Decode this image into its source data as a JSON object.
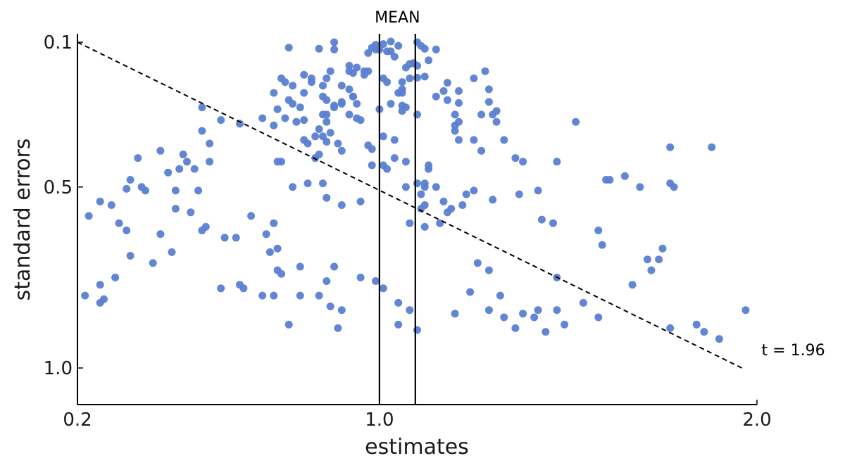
{
  "chart_data": {
    "type": "scatter",
    "title": "",
    "xlabel": "estimates",
    "ylabel": "standard errors",
    "xlim": [
      0.2,
      2.0
    ],
    "ylim": [
      0.1,
      1.0
    ],
    "y_inverted": true,
    "x_ticks": [
      0.2,
      1.0,
      2.0
    ],
    "x_tick_labels": [
      "0.2",
      "1.0",
      "2.0"
    ],
    "y_ticks": [
      0.1,
      0.5,
      1.0
    ],
    "y_tick_labels": [
      "0.1",
      "0.5",
      "1.0"
    ],
    "grid": false,
    "point_color": "#5b7fd1",
    "vertical_lines": [
      {
        "x": 1.0,
        "label": "MEAN"
      },
      {
        "x": 1.095
      }
    ],
    "reference_line": {
      "style": "dashed",
      "x": [
        0.2,
        1.96
      ],
      "y": [
        0.1,
        1.0
      ],
      "label": "t = 1.96"
    },
    "points": [
      [
        0.76,
        0.115
      ],
      [
        0.84,
        0.118
      ],
      [
        0.88,
        0.12
      ],
      [
        0.88,
        0.1
      ],
      [
        0.92,
        0.165
      ],
      [
        0.92,
        0.18
      ],
      [
        0.94,
        0.17
      ],
      [
        0.97,
        0.13
      ],
      [
        0.99,
        0.12
      ],
      [
        1.03,
        0.098
      ],
      [
        1.05,
        0.11
      ],
      [
        1.1,
        0.1
      ],
      [
        1.11,
        0.11
      ],
      [
        1.12,
        0.118
      ],
      [
        1.15,
        0.12
      ],
      [
        1.13,
        0.15
      ],
      [
        1.08,
        0.16
      ],
      [
        1.09,
        0.158
      ],
      [
        1.1,
        0.165
      ],
      [
        1.07,
        0.17
      ],
      [
        1.03,
        0.125
      ],
      [
        1.04,
        0.14
      ],
      [
        1.02,
        0.125
      ],
      [
        0.98,
        0.115
      ],
      [
        0.99,
        0.107
      ],
      [
        1.0,
        0.12
      ],
      [
        1.01,
        0.105
      ],
      [
        0.96,
        0.18
      ],
      [
        1.05,
        0.24
      ],
      [
        1.06,
        0.23
      ],
      [
        1.08,
        0.2
      ],
      [
        1.06,
        0.21
      ],
      [
        1.06,
        0.24
      ],
      [
        1.06,
        0.275
      ],
      [
        1.07,
        0.28
      ],
      [
        1.1,
        0.198
      ],
      [
        1.12,
        0.195
      ],
      [
        1.17,
        0.235
      ],
      [
        1.18,
        0.212
      ],
      [
        1.15,
        0.25
      ],
      [
        1.18,
        0.26
      ],
      [
        1.21,
        0.235
      ],
      [
        1.21,
        0.268
      ],
      [
        1.2,
        0.3
      ],
      [
        1.21,
        0.32
      ],
      [
        1.2,
        0.33
      ],
      [
        1.2,
        0.345
      ],
      [
        1.21,
        0.37
      ],
      [
        1.25,
        0.37
      ],
      [
        1.27,
        0.3
      ],
      [
        1.3,
        0.3
      ],
      [
        1.31,
        0.29
      ],
      [
        1.29,
        0.265
      ],
      [
        1.29,
        0.23
      ],
      [
        1.28,
        0.18
      ],
      [
        1.25,
        0.2
      ],
      [
        1.31,
        0.32
      ],
      [
        1.33,
        0.37
      ],
      [
        1.36,
        0.42
      ],
      [
        1.38,
        0.43
      ],
      [
        1.25,
        0.51
      ],
      [
        1.3,
        0.535
      ],
      [
        1.18,
        0.57
      ],
      [
        1.07,
        0.5
      ],
      [
        1.1,
        0.49
      ],
      [
        1.12,
        0.55
      ],
      [
        1.11,
        0.56
      ],
      [
        1.16,
        0.6
      ],
      [
        1.12,
        0.61
      ],
      [
        1.08,
        0.6
      ],
      [
        0.87,
        0.18
      ],
      [
        0.86,
        0.2
      ],
      [
        0.82,
        0.21
      ],
      [
        0.8,
        0.24
      ],
      [
        0.79,
        0.28
      ],
      [
        0.8,
        0.315
      ],
      [
        0.85,
        0.3
      ],
      [
        0.88,
        0.275
      ],
      [
        0.9,
        0.265
      ],
      [
        0.93,
        0.25
      ],
      [
        0.92,
        0.3
      ],
      [
        0.93,
        0.25
      ],
      [
        0.86,
        0.3
      ],
      [
        0.86,
        0.32
      ],
      [
        0.84,
        0.34
      ],
      [
        0.85,
        0.36
      ],
      [
        0.87,
        0.35
      ],
      [
        0.83,
        0.36
      ],
      [
        0.86,
        0.375
      ],
      [
        0.89,
        0.38
      ],
      [
        0.88,
        0.28
      ],
      [
        0.9,
        0.4
      ],
      [
        0.97,
        0.385
      ],
      [
        0.98,
        0.395
      ],
      [
        1.01,
        0.36
      ],
      [
        1.04,
        0.37
      ],
      [
        1.06,
        0.29
      ],
      [
        1.1,
        0.3
      ],
      [
        1.03,
        0.27
      ],
      [
        0.83,
        0.42
      ],
      [
        0.81,
        0.38
      ],
      [
        0.8,
        0.37
      ],
      [
        0.84,
        0.41
      ],
      [
        0.78,
        0.32
      ],
      [
        0.73,
        0.43
      ],
      [
        0.72,
        0.33
      ],
      [
        0.69,
        0.31
      ],
      [
        0.63,
        0.325
      ],
      [
        0.55,
        0.38
      ],
      [
        0.53,
        0.345
      ],
      [
        0.49,
        0.43
      ],
      [
        0.47,
        0.45
      ],
      [
        0.44,
        0.46
      ],
      [
        0.55,
        0.43
      ],
      [
        0.58,
        0.315
      ],
      [
        0.53,
        0.28
      ],
      [
        0.42,
        0.4
      ],
      [
        0.37,
        0.5
      ],
      [
        0.36,
        0.42
      ],
      [
        0.34,
        0.48
      ],
      [
        0.38,
        0.51
      ],
      [
        0.33,
        0.505
      ],
      [
        0.46,
        0.56
      ],
      [
        0.42,
        0.63
      ],
      [
        0.33,
        0.62
      ],
      [
        0.29,
        0.55
      ],
      [
        0.26,
        0.54
      ],
      [
        0.31,
        0.6
      ],
      [
        0.34,
        0.69
      ],
      [
        0.4,
        0.71
      ],
      [
        0.3,
        0.75
      ],
      [
        0.26,
        0.77
      ],
      [
        0.22,
        0.8
      ],
      [
        0.26,
        0.82
      ],
      [
        0.27,
        0.81
      ],
      [
        0.23,
        0.58
      ],
      [
        0.45,
        0.68
      ],
      [
        0.5,
        0.57
      ],
      [
        0.54,
        0.61
      ],
      [
        0.59,
        0.64
      ],
      [
        0.58,
        0.78
      ],
      [
        0.66,
        0.58
      ],
      [
        0.7,
        0.63
      ],
      [
        0.73,
        0.73
      ],
      [
        0.73,
        0.67
      ],
      [
        0.71,
        0.68
      ],
      [
        0.72,
        0.6
      ],
      [
        0.74,
        0.74
      ],
      [
        0.79,
        0.72
      ],
      [
        0.86,
        0.76
      ],
      [
        0.87,
        0.83
      ],
      [
        0.9,
        0.84
      ],
      [
        0.88,
        0.72
      ],
      [
        0.84,
        0.8
      ],
      [
        0.79,
        0.8
      ],
      [
        0.89,
        0.89
      ],
      [
        0.76,
        0.88
      ],
      [
        0.72,
        0.8
      ],
      [
        0.69,
        0.8
      ],
      [
        0.64,
        0.78
      ],
      [
        0.63,
        0.77
      ],
      [
        0.62,
        0.64
      ],
      [
        0.53,
        0.62
      ],
      [
        0.52,
        0.51
      ],
      [
        0.46,
        0.51
      ],
      [
        0.48,
        0.41
      ],
      [
        0.51,
        0.45
      ],
      [
        0.95,
        0.75
      ],
      [
        0.99,
        0.76
      ],
      [
        1.01,
        0.78
      ],
      [
        1.05,
        0.82
      ],
      [
        1.08,
        0.84
      ],
      [
        1.05,
        0.88
      ],
      [
        1.1,
        0.895
      ],
      [
        1.2,
        0.85
      ],
      [
        1.24,
        0.79
      ],
      [
        1.29,
        0.84
      ],
      [
        1.33,
        0.86
      ],
      [
        1.36,
        0.89
      ],
      [
        1.42,
        0.84
      ],
      [
        1.47,
        0.84
      ],
      [
        1.49,
        0.88
      ],
      [
        1.54,
        0.82
      ],
      [
        1.58,
        0.86
      ],
      [
        1.67,
        0.77
      ],
      [
        1.72,
        0.73
      ],
      [
        1.77,
        0.89
      ],
      [
        1.84,
        0.88
      ],
      [
        1.86,
        0.9
      ],
      [
        1.9,
        0.92
      ],
      [
        1.97,
        0.84
      ],
      [
        1.75,
        0.67
      ],
      [
        1.74,
        0.7
      ],
      [
        1.71,
        0.7
      ],
      [
        1.59,
        0.66
      ],
      [
        1.58,
        0.62
      ],
      [
        1.46,
        0.6
      ],
      [
        1.43,
        0.59
      ],
      [
        1.42,
        0.51
      ],
      [
        1.37,
        0.52
      ],
      [
        1.27,
        0.4
      ],
      [
        1.47,
        0.43
      ],
      [
        1.52,
        0.32
      ],
      [
        1.6,
        0.48
      ],
      [
        1.61,
        0.48
      ],
      [
        1.65,
        0.47
      ],
      [
        1.69,
        0.5
      ],
      [
        1.77,
        0.49
      ],
      [
        1.78,
        0.5
      ],
      [
        1.77,
        0.39
      ],
      [
        1.88,
        0.39
      ],
      [
        1.47,
        0.75
      ],
      [
        1.44,
        0.9
      ],
      [
        1.41,
        0.86
      ],
      [
        1.38,
        0.85
      ],
      [
        1.32,
        0.8
      ],
      [
        1.29,
        0.73
      ],
      [
        1.26,
        0.71
      ],
      [
        1.23,
        0.52
      ],
      [
        1.22,
        0.55
      ],
      [
        1.19,
        0.56
      ],
      [
        1.17,
        0.54
      ],
      [
        1.15,
        0.5
      ],
      [
        1.13,
        0.45
      ],
      [
        1.13,
        0.44
      ],
      [
        1.12,
        0.49
      ],
      [
        1.12,
        0.5
      ],
      [
        1.11,
        0.52
      ],
      [
        1.02,
        0.45
      ],
      [
        1.01,
        0.44
      ],
      [
        1.04,
        0.42
      ],
      [
        1.07,
        0.43
      ],
      [
        0.98,
        0.44
      ],
      [
        0.95,
        0.54
      ],
      [
        0.9,
        0.55
      ],
      [
        0.86,
        0.53
      ],
      [
        0.85,
        0.49
      ],
      [
        0.81,
        0.49
      ],
      [
        0.77,
        0.5
      ],
      [
        0.74,
        0.43
      ],
      [
        0.77,
        0.27
      ],
      [
        0.75,
        0.31
      ],
      [
        0.76,
        0.26
      ],
      [
        0.72,
        0.24
      ],
      [
        0.73,
        0.285
      ],
      [
        0.74,
        0.2
      ],
      [
        0.75,
        0.21
      ],
      [
        0.77,
        0.22
      ],
      [
        0.8,
        0.19
      ],
      [
        0.82,
        0.2
      ],
      [
        0.85,
        0.22
      ],
      [
        0.85,
        0.25
      ],
      [
        0.86,
        0.26
      ],
      [
        0.9,
        0.27
      ],
      [
        0.94,
        0.27
      ],
      [
        0.92,
        0.23
      ],
      [
        0.9,
        0.22
      ],
      [
        0.93,
        0.185
      ],
      [
        0.96,
        0.19
      ],
      [
        0.97,
        0.18
      ],
      [
        1.01,
        0.2
      ],
      [
        1.02,
        0.21
      ],
      [
        1.0,
        0.285
      ],
      [
        0.94,
        0.31
      ],
      [
        0.95,
        0.315
      ]
    ]
  }
}
